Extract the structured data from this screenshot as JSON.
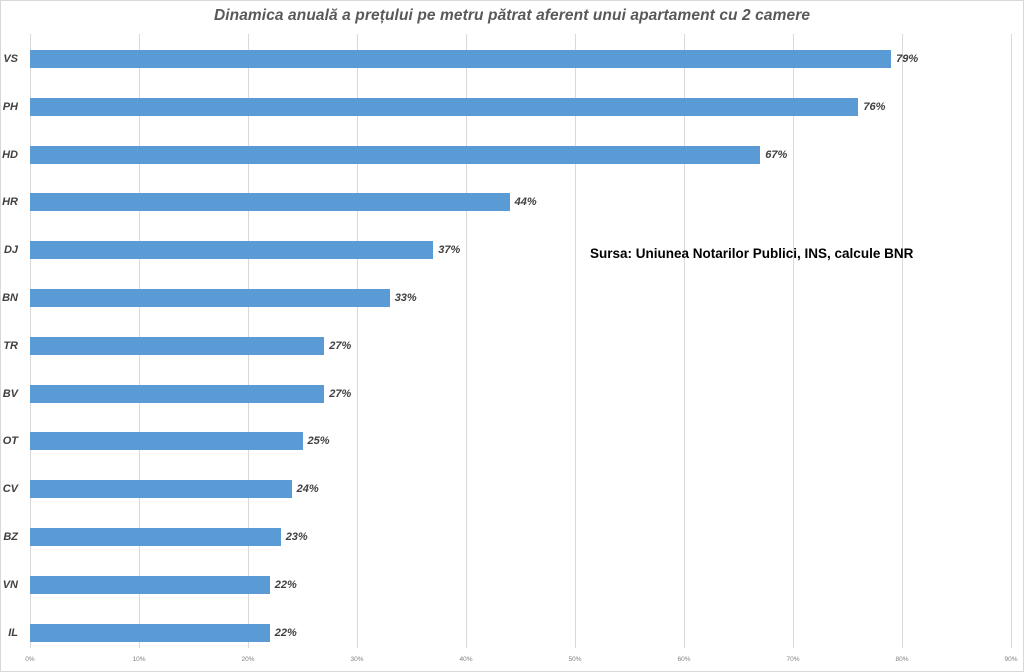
{
  "title": "Dinamica anuală a prețului pe metru pătrat aferent unui apartament cu 2 camere",
  "annotation": "Sursa: Uniunea Notarilor Publici, INS, calcule BNR",
  "chart_data": {
    "type": "bar",
    "orientation": "horizontal",
    "title": "Dinamica anuală a prețului pe metru pătrat aferent unui apartament cu 2 camere",
    "categories": [
      "VS",
      "PH",
      "HD",
      "HR",
      "DJ",
      "BN",
      "TR",
      "BV",
      "OT",
      "CV",
      "BZ",
      "VN",
      "IL"
    ],
    "values": [
      79,
      76,
      67,
      44,
      37,
      33,
      27,
      27,
      25,
      24,
      23,
      22,
      22
    ],
    "value_labels": [
      "79%",
      "76%",
      "67%",
      "44%",
      "37%",
      "33%",
      "27%",
      "27%",
      "25%",
      "24%",
      "23%",
      "22%",
      "22%"
    ],
    "xlabel": "",
    "ylabel": "",
    "xlim": [
      0,
      90
    ],
    "x_ticks": [
      "0%",
      "10%",
      "20%",
      "30%",
      "40%",
      "50%",
      "60%",
      "70%",
      "80%",
      "90%"
    ],
    "grid": true,
    "legend": false,
    "annotation": "Sursa: Uniunea Notarilor Publici, INS, calcule BNR"
  },
  "colors": {
    "bar": "#5b9bd5",
    "grid": "#d9d9d9",
    "title": "#595959",
    "label": "#404040",
    "tick": "#808080",
    "annotation": "#000000",
    "border": "#d9d9d9"
  }
}
